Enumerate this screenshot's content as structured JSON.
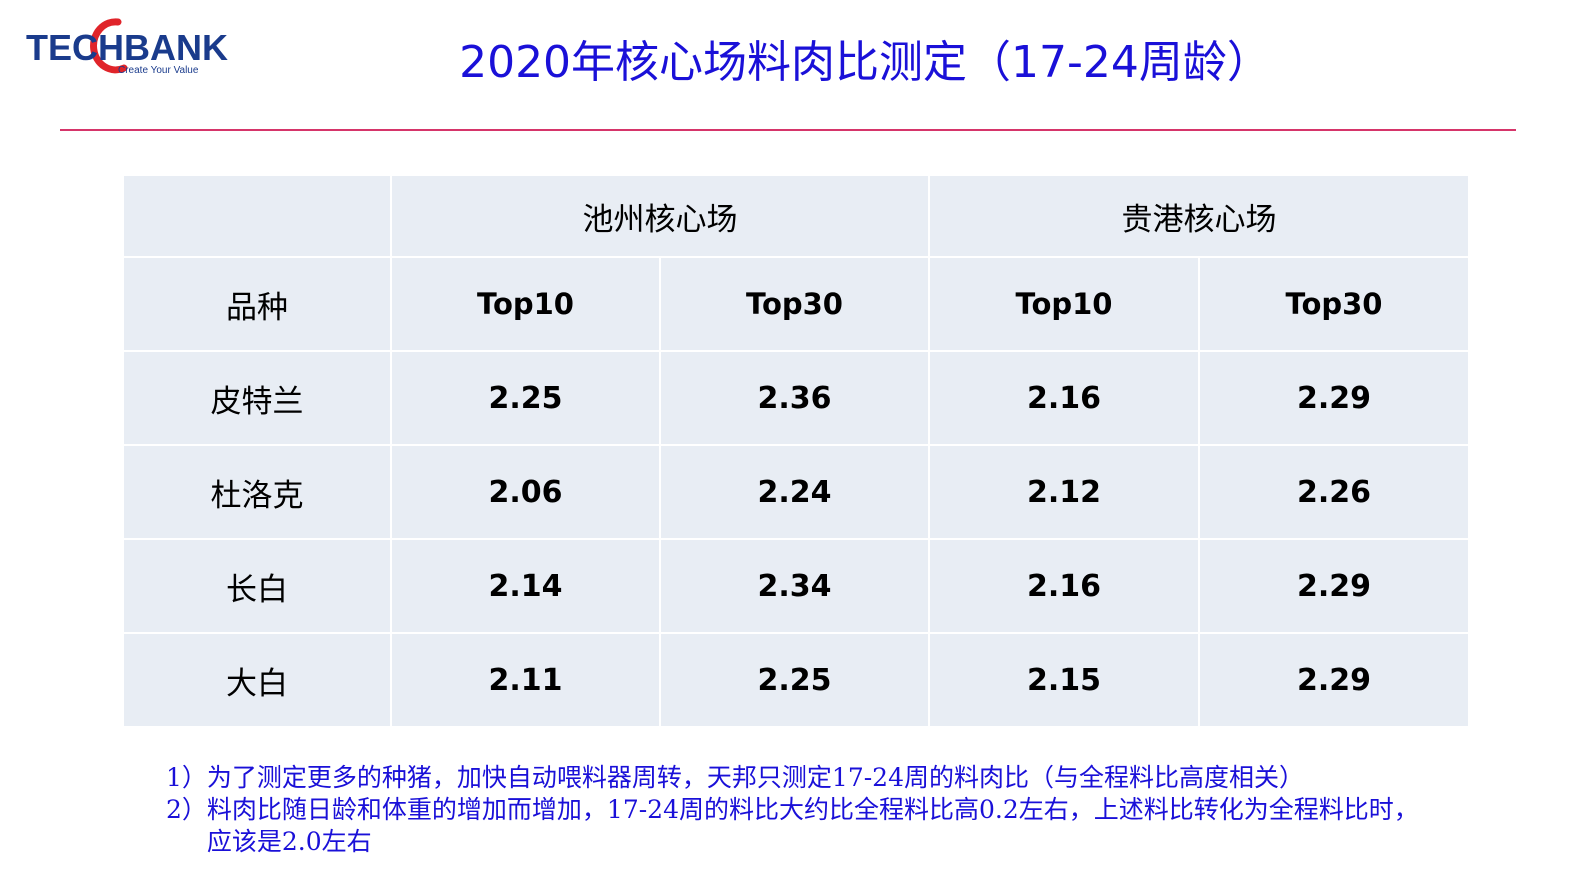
{
  "logo": {
    "brand": "TECHBANK",
    "tagline": "Create Your Value",
    "accent": "#e0242a",
    "text_color": "#1a3b8c"
  },
  "page": {
    "title": "2020年核心场料肉比测定（17-24周龄）",
    "title_color": "#1a10d8",
    "rule_color": "#d6356a"
  },
  "table": {
    "sites": [
      "池州核心场",
      "贵港核心场"
    ],
    "header": {
      "breed": "品种",
      "cols": [
        "Top10",
        "Top30",
        "Top10",
        "Top30"
      ]
    },
    "rows": [
      {
        "breed": "皮特兰",
        "values": [
          "2.25",
          "2.36",
          "2.16",
          "2.29"
        ]
      },
      {
        "breed": "杜洛克",
        "values": [
          "2.06",
          "2.24",
          "2.12",
          "2.26"
        ]
      },
      {
        "breed": "长白",
        "values": [
          "2.14",
          "2.34",
          "2.16",
          "2.29"
        ]
      },
      {
        "breed": "大白",
        "values": [
          "2.11",
          "2.25",
          "2.15",
          "2.29"
        ]
      }
    ],
    "cell_color": "#e8edf4"
  },
  "notes": [
    {
      "label": "1）",
      "text": "为了测定更多的种猪，加快自动喂料器周转，天邦只测定17-24周的料肉比（与全程料比高度相关）"
    },
    {
      "label": "2）",
      "text": "料肉比随日龄和体重的增加而增加，17-24周的料比大约比全程料比高0.2左右，上述料比转化为全程料比时，应该是2.0左右"
    }
  ]
}
